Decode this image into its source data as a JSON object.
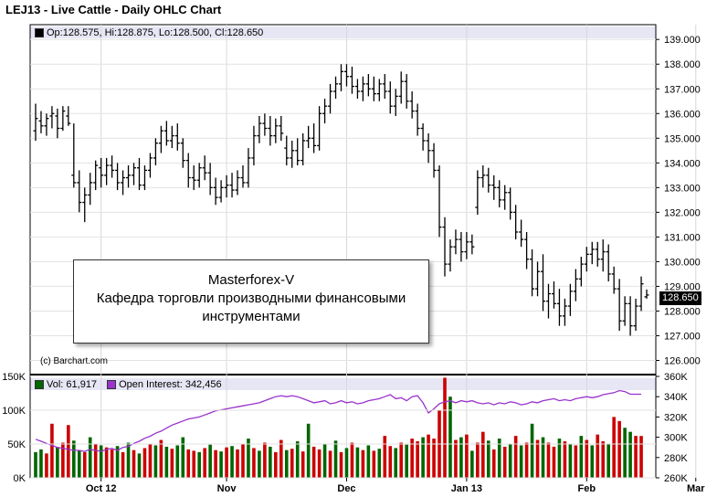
{
  "title": "LEJ13 - Live Cattle - Daily OHLC Chart",
  "ohlc_legend": "Op:128.575, Hi:128.875, Lo:128.500, Cl:128.650",
  "last_price": "128.650",
  "copyright": "(c) Barchart.com",
  "watermark": {
    "line1": "Masterforex-V",
    "line2": "Кафедра торговли производными финансовыми",
    "line3": "инструментами"
  },
  "volume_legend": {
    "vol_label": "Vol: 61,917",
    "oi_label": "Open Interest: 342,456"
  },
  "colors": {
    "up": "#cc0000",
    "down": "#006600",
    "oi": "#9933cc",
    "header_band": "#e6e6f5"
  },
  "chart_data": {
    "type": "ohlc",
    "title": "LEJ13 - Live Cattle - Daily OHLC Chart",
    "price_axis": {
      "ylim": [
        125.5,
        139.6
      ],
      "ticks": [
        "126.000",
        "127.000",
        "128.000",
        "129.000",
        "130.000",
        "131.000",
        "132.000",
        "133.000",
        "134.000",
        "135.000",
        "136.000",
        "137.000",
        "138.000",
        "139.000"
      ]
    },
    "x_labels": [
      "Oct 12",
      "Nov",
      "Dec",
      "Jan 13",
      "Feb",
      "Mar"
    ],
    "x_label_index": [
      12,
      35,
      57,
      79,
      101,
      121
    ],
    "ohlc": [
      [
        135.3,
        136.4,
        134.9,
        135.8
      ],
      [
        135.7,
        136.1,
        135.2,
        135.5
      ],
      [
        135.5,
        136.0,
        135.1,
        135.8
      ],
      [
        135.9,
        136.3,
        135.4,
        136.0
      ],
      [
        135.9,
        136.2,
        135.0,
        135.4
      ],
      [
        135.4,
        136.3,
        135.3,
        136.1
      ],
      [
        135.9,
        136.3,
        135.5,
        135.6
      ],
      [
        133.5,
        135.6,
        133.0,
        133.2
      ],
      [
        133.2,
        133.7,
        132.0,
        132.4
      ],
      [
        132.4,
        133.0,
        131.6,
        132.7
      ],
      [
        132.7,
        133.6,
        132.3,
        133.2
      ],
      [
        133.2,
        134.1,
        132.9,
        133.9
      ],
      [
        133.8,
        134.2,
        133.0,
        133.5
      ],
      [
        133.5,
        134.2,
        133.1,
        133.9
      ],
      [
        133.9,
        134.3,
        133.4,
        133.7
      ],
      [
        133.7,
        134.0,
        132.9,
        133.2
      ],
      [
        133.2,
        133.7,
        132.7,
        133.4
      ],
      [
        133.4,
        133.9,
        133.0,
        133.5
      ],
      [
        133.5,
        134.0,
        133.1,
        133.8
      ],
      [
        133.8,
        134.2,
        132.9,
        133.1
      ],
      [
        133.1,
        133.9,
        132.9,
        133.7
      ],
      [
        133.7,
        134.4,
        133.4,
        134.2
      ],
      [
        134.2,
        135.0,
        133.9,
        134.8
      ],
      [
        134.8,
        135.5,
        134.4,
        135.3
      ],
      [
        135.3,
        135.7,
        134.7,
        134.9
      ],
      [
        134.9,
        135.5,
        134.6,
        135.1
      ],
      [
        135.1,
        135.6,
        134.5,
        134.8
      ],
      [
        134.8,
        135.0,
        133.8,
        134.1
      ],
      [
        134.1,
        134.4,
        133.0,
        133.4
      ],
      [
        133.4,
        133.9,
        132.9,
        133.3
      ],
      [
        133.3,
        134.0,
        133.0,
        133.8
      ],
      [
        133.8,
        134.3,
        133.3,
        133.6
      ],
      [
        133.6,
        134.0,
        132.7,
        133.0
      ],
      [
        133.0,
        133.4,
        132.3,
        132.6
      ],
      [
        132.6,
        133.3,
        132.4,
        133.0
      ],
      [
        133.0,
        133.5,
        132.6,
        133.1
      ],
      [
        133.1,
        133.6,
        132.6,
        132.9
      ],
      [
        132.9,
        133.7,
        132.7,
        133.4
      ],
      [
        133.4,
        133.9,
        133.0,
        133.2
      ],
      [
        133.2,
        134.6,
        133.0,
        134.2
      ],
      [
        134.2,
        135.5,
        133.9,
        135.1
      ],
      [
        135.1,
        135.9,
        134.8,
        135.6
      ],
      [
        135.6,
        136.0,
        135.1,
        135.4
      ],
      [
        135.4,
        135.9,
        134.7,
        135.1
      ],
      [
        135.1,
        135.8,
        134.8,
        135.5
      ],
      [
        135.5,
        135.9,
        134.9,
        135.2
      ],
      [
        134.6,
        135.1,
        133.9,
        134.2
      ],
      [
        134.2,
        134.9,
        133.8,
        134.5
      ],
      [
        134.5,
        135.0,
        133.9,
        134.1
      ],
      [
        134.1,
        135.2,
        133.9,
        134.9
      ],
      [
        134.9,
        135.5,
        134.6,
        135.0
      ],
      [
        135.0,
        135.6,
        134.4,
        134.7
      ],
      [
        134.7,
        136.3,
        134.5,
        136.0
      ],
      [
        136.0,
        136.6,
        135.6,
        136.3
      ],
      [
        136.3,
        137.2,
        136.0,
        136.9
      ],
      [
        136.9,
        137.5,
        136.6,
        137.2
      ],
      [
        137.2,
        138.0,
        136.9,
        137.7
      ],
      [
        137.7,
        138.0,
        137.1,
        137.5
      ],
      [
        137.5,
        137.9,
        136.8,
        137.1
      ],
      [
        137.1,
        137.4,
        136.6,
        136.9
      ],
      [
        136.9,
        137.5,
        136.5,
        137.2
      ],
      [
        137.2,
        137.6,
        136.7,
        137.0
      ],
      [
        137.0,
        137.5,
        136.5,
        136.8
      ],
      [
        136.8,
        137.4,
        136.5,
        137.2
      ],
      [
        137.2,
        137.6,
        136.6,
        136.9
      ],
      [
        136.9,
        137.3,
        136.0,
        136.3
      ],
      [
        136.3,
        137.0,
        135.9,
        136.7
      ],
      [
        136.7,
        137.7,
        136.4,
        137.3
      ],
      [
        137.3,
        137.6,
        136.2,
        136.5
      ],
      [
        136.5,
        136.9,
        135.8,
        136.1
      ],
      [
        136.1,
        136.4,
        135.1,
        135.4
      ],
      [
        135.4,
        135.6,
        134.5,
        134.9
      ],
      [
        134.9,
        135.2,
        134.0,
        134.5
      ],
      [
        134.5,
        134.8,
        133.4,
        133.7
      ],
      [
        133.7,
        133.9,
        131.0,
        131.4
      ],
      [
        131.4,
        131.8,
        129.4,
        129.9
      ],
      [
        129.9,
        130.9,
        129.6,
        130.6
      ],
      [
        130.6,
        131.3,
        130.3,
        130.9
      ],
      [
        130.9,
        131.2,
        130.0,
        130.4
      ],
      [
        130.4,
        131.2,
        130.1,
        130.8
      ],
      [
        130.8,
        131.1,
        130.3,
        130.6
      ],
      [
        132.2,
        133.7,
        131.9,
        133.4
      ],
      [
        133.4,
        133.9,
        133.0,
        133.5
      ],
      [
        133.5,
        133.8,
        132.8,
        133.1
      ],
      [
        133.1,
        133.5,
        132.5,
        133.0
      ],
      [
        133.0,
        133.3,
        132.2,
        132.5
      ],
      [
        132.5,
        133.1,
        132.1,
        132.8
      ],
      [
        132.8,
        133.0,
        131.7,
        132.0
      ],
      [
        132.0,
        132.3,
        130.9,
        131.2
      ],
      [
        131.2,
        131.7,
        130.6,
        130.9
      ],
      [
        130.9,
        131.2,
        129.7,
        130.1
      ],
      [
        130.1,
        130.5,
        128.6,
        128.9
      ],
      [
        128.9,
        130.0,
        128.6,
        129.6
      ],
      [
        129.6,
        130.3,
        128.0,
        128.4
      ],
      [
        128.4,
        129.1,
        127.7,
        128.7
      ],
      [
        128.7,
        129.2,
        128.1,
        128.3
      ],
      [
        128.3,
        128.9,
        127.4,
        127.8
      ],
      [
        127.8,
        128.5,
        127.4,
        128.2
      ],
      [
        128.2,
        129.1,
        127.8,
        128.8
      ],
      [
        128.8,
        129.7,
        128.4,
        129.3
      ],
      [
        129.3,
        130.2,
        129.0,
        129.9
      ],
      [
        129.9,
        130.6,
        129.6,
        130.3
      ],
      [
        130.3,
        130.8,
        129.9,
        130.5
      ],
      [
        130.5,
        130.8,
        129.8,
        130.1
      ],
      [
        130.1,
        130.9,
        129.6,
        130.4
      ],
      [
        130.4,
        130.7,
        129.2,
        129.5
      ],
      [
        129.5,
        129.8,
        128.7,
        128.9
      ],
      [
        128.9,
        129.3,
        127.2,
        127.6
      ],
      [
        127.6,
        128.6,
        127.4,
        128.3
      ],
      [
        128.3,
        128.6,
        127.0,
        127.4
      ],
      [
        127.4,
        128.5,
        127.2,
        128.2
      ],
      [
        128.2,
        129.4,
        128.0,
        129.1
      ],
      [
        128.575,
        128.875,
        128.5,
        128.65
      ]
    ],
    "volume_axis": {
      "ylim": [
        0,
        150000
      ],
      "ticks": [
        "0K",
        "50K",
        "100K",
        "150K"
      ]
    },
    "open_interest_axis": {
      "ylim": [
        260000,
        360000
      ],
      "ticks": [
        "260K",
        "280K",
        "300K",
        "320K",
        "340K",
        "360K"
      ]
    },
    "volume": [
      38000,
      42000,
      36000,
      80000,
      45000,
      52000,
      78000,
      55000,
      40000,
      38000,
      60000,
      50000,
      48000,
      45000,
      42000,
      47000,
      38000,
      52000,
      41000,
      36000,
      44000,
      50000,
      48000,
      56000,
      46000,
      43000,
      48000,
      60000,
      42000,
      40000,
      38000,
      44000,
      49000,
      41000,
      39000,
      45000,
      47000,
      42000,
      50000,
      58000,
      44000,
      40000,
      52000,
      46000,
      38000,
      56000,
      41000,
      43000,
      54000,
      39000,
      80000,
      46000,
      42000,
      50000,
      40000,
      55000,
      38000,
      44000,
      52000,
      45000,
      41000,
      48000,
      40000,
      43000,
      62000,
      47000,
      44000,
      52000,
      49000,
      58000,
      54000,
      60000,
      64000,
      58000,
      100000,
      148000,
      120000,
      56000,
      60000,
      64000,
      40000,
      52000,
      68000,
      55000,
      42000,
      58000,
      46000,
      50000,
      62000,
      48000,
      52000,
      80000,
      56000,
      60000,
      52000,
      46000,
      58000,
      54000,
      50000,
      48000,
      62000,
      56000,
      48000,
      64000,
      54000,
      50000,
      90000,
      84000,
      74000,
      68000,
      62000,
      61917
    ],
    "volume_up": [
      0,
      0,
      1,
      1,
      0,
      1,
      1,
      0,
      0,
      1,
      0,
      1,
      0,
      1,
      1,
      0,
      1,
      0,
      1,
      0,
      1,
      1,
      0,
      1,
      0,
      1,
      0,
      0,
      1,
      1,
      0,
      1,
      0,
      1,
      0,
      1,
      0,
      1,
      1,
      0,
      1,
      0,
      1,
      0,
      1,
      1,
      0,
      1,
      0,
      1,
      0,
      1,
      1,
      0,
      1,
      0,
      1,
      0,
      1,
      0,
      1,
      0,
      1,
      0,
      1,
      1,
      0,
      1,
      0,
      1,
      1,
      0,
      1,
      1,
      1,
      1,
      0,
      1,
      0,
      1,
      0,
      1,
      1,
      0,
      1,
      0,
      1,
      0,
      1,
      0,
      1,
      0,
      1,
      0,
      1,
      1,
      0,
      1,
      0,
      1,
      0,
      1,
      0,
      1,
      1,
      0,
      1,
      1,
      0,
      0,
      1,
      1
    ],
    "open_interest": [
      298000,
      296000,
      294000,
      292000,
      290000,
      289000,
      288000,
      287000,
      287000,
      286000,
      288000,
      287000,
      286000,
      288000,
      289000,
      287000,
      290000,
      291000,
      294000,
      296000,
      299000,
      301000,
      304000,
      306000,
      309000,
      312000,
      314000,
      316000,
      318000,
      319000,
      320000,
      322000,
      324000,
      326000,
      327000,
      328000,
      329000,
      330000,
      331000,
      332000,
      333000,
      334000,
      336000,
      338000,
      340000,
      341000,
      340000,
      341000,
      340000,
      338000,
      336000,
      334000,
      335000,
      336000,
      333000,
      334000,
      336000,
      334000,
      335000,
      333000,
      334000,
      336000,
      337000,
      338000,
      340000,
      342000,
      338000,
      339000,
      336000,
      340000,
      341000,
      334000,
      324000,
      328000,
      333000,
      335000,
      336000,
      334000,
      336000,
      335000,
      336000,
      334000,
      333000,
      334000,
      332000,
      334000,
      333000,
      335000,
      334000,
      332000,
      333000,
      335000,
      334000,
      336000,
      337000,
      338000,
      336000,
      337000,
      336000,
      338000,
      339000,
      340000,
      339000,
      340000,
      342000,
      343000,
      344000,
      346000,
      345000,
      342456,
      342456,
      342456
    ],
    "grid": true
  }
}
